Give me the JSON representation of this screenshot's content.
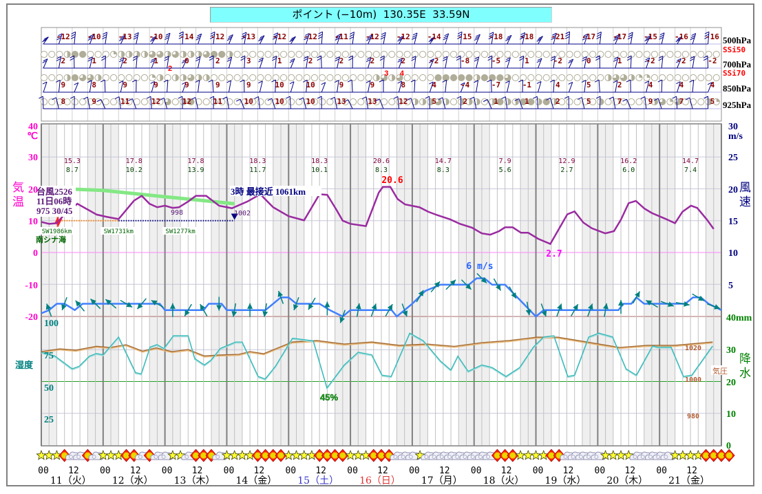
{
  "title": "ポイント (−10m)  130.35E  33.59N",
  "upper_air": {
    "levels": [
      {
        "label": "500hPa",
        "temps": [
          "-12",
          "-10",
          "-13",
          "-10",
          "-14",
          "-12",
          "-13",
          "-12",
          "-12",
          "-11",
          "-12",
          "-12",
          "-14",
          "-15",
          "-18",
          "-18",
          "-21",
          "-17",
          "-17",
          "-15",
          "-16",
          "-16"
        ]
      },
      {
        "label": "700hPa",
        "temps": [
          "2",
          "1",
          "2",
          "1",
          "0",
          "2",
          "3",
          "1",
          "2",
          "2",
          "2",
          "2",
          "-2",
          "-8",
          "-5",
          "1",
          "-2",
          "0",
          "1",
          "-2",
          "-2",
          "-2"
        ]
      },
      {
        "label": "850hPa",
        "temps": [
          "9",
          "8",
          "9",
          "9",
          "9",
          "9",
          "9",
          "10",
          "10",
          "9",
          "9",
          "8",
          "4",
          "-4",
          "-7",
          "-1",
          "4",
          "5",
          "2",
          "4",
          "4",
          "4"
        ]
      },
      {
        "label": "925hPa",
        "temps": [
          "8",
          "9",
          "11",
          "12",
          "12",
          "11",
          "10",
          "10",
          "10",
          "13",
          "13",
          "12",
          "5",
          "2",
          "1",
          "1",
          "2",
          "5",
          "7",
          "9",
          "7",
          "5"
        ]
      }
    ],
    "ssi_labels": [
      "SSi50",
      "SSi70"
    ],
    "ssi_rows": [
      "0002440001222233232223442000000000000000000000000000000000000000000000000000000000000000",
      "0002433200000012022322000000000000000000000232300004444424443000000000000233211000000000",
      "0000000000000000302400000000000000000000000000002223202220242244242000002000000231300021202200"
    ],
    "ssi_red_labels": [
      {
        "hour": 50,
        "text": "2"
      },
      {
        "hour": 134,
        "text": "3"
      },
      {
        "hour": 140,
        "text": "4"
      }
    ]
  },
  "axes": {
    "temp": {
      "ticks": [
        "40",
        "30",
        "20",
        "10",
        "0",
        "-10",
        "-20"
      ],
      "unit": "℃",
      "label": [
        "気",
        "温"
      ]
    },
    "wind": {
      "ticks": [
        "30",
        "25",
        "20",
        "15",
        "10",
        "5"
      ],
      "unit": "m/s",
      "label": [
        "風",
        "速"
      ]
    },
    "precip": {
      "ticks": [
        "40mm",
        "30",
        "20",
        "10",
        "0"
      ],
      "label": [
        "降",
        "水"
      ]
    },
    "humidity": {
      "ticks": [
        "100",
        "75",
        "50",
        "25"
      ],
      "label": "湿度"
    },
    "pressure": {
      "ticks": [
        "1020",
        "1000",
        "980"
      ],
      "label": "気圧"
    }
  },
  "daily": [
    {
      "max": "15.3",
      "min": "8.7"
    },
    {
      "max": "17.8",
      "min": "10.2"
    },
    {
      "max": "17.8",
      "min": "13.9"
    },
    {
      "max": "18.3",
      "min": "11.7"
    },
    {
      "max": "18.3",
      "min": "10.1"
    },
    {
      "max": "20.6",
      "min": "8.3"
    },
    {
      "max": "14.7",
      "min": "8.3"
    },
    {
      "max": "7.9",
      "min": "5.6"
    },
    {
      "max": "12.9",
      "min": "2.7"
    },
    {
      "max": "16.2",
      "min": "6.0"
    },
    {
      "max": "14.7",
      "min": "7.4"
    }
  ],
  "annotations": {
    "temp_max": "20.6",
    "temp_min": "2.7",
    "wind_max": "6 m/s",
    "humidity_min": "45%"
  },
  "typhoon": {
    "name": "台風2526",
    "time": "11日06時",
    "info": "975 30/45",
    "pressure_a": "998",
    "pressure_b": "1002",
    "closest": "3時 最接近 1061km",
    "distances": [
      "SW1986km",
      "SW1731km",
      "SW1277km"
    ],
    "region": "南シナ海",
    "track_line": [
      [
        6,
        20.1
      ],
      [
        24,
        19.5
      ],
      [
        48,
        17.5
      ],
      [
        75,
        15.3
      ]
    ],
    "dotted_past": [
      7,
      30
    ],
    "dotted_future": [
      30,
      75
    ]
  },
  "time_axis": {
    "hour_labels": [
      "00",
      "12"
    ],
    "days": [
      {
        "label": "11（火）",
        "color": "#000000"
      },
      {
        "label": "12（水）",
        "color": "#000000"
      },
      {
        "label": "13（木）",
        "color": "#000000"
      },
      {
        "label": "14（金）",
        "color": "#000000"
      },
      {
        "label": "15（土）",
        "color": "#3333cc"
      },
      {
        "label": "16（日）",
        "color": "#e03333"
      },
      {
        "label": "17（月）",
        "color": "#000000"
      },
      {
        "label": "18（火）",
        "color": "#000000"
      },
      {
        "label": "19（水）",
        "color": "#000000"
      },
      {
        "label": "20（木）",
        "color": "#000000"
      },
      {
        "label": "21（金）",
        "color": "#000000"
      }
    ]
  },
  "weather_icons": "sssuccucsssuucuccsscuuucssssuuuussssuuuusssuuucccscccccccccuuussssuucccccsssscccccssssuuuu",
  "colors": {
    "temp": "#9a2aa0",
    "wind": "#4080ff",
    "arrow": "#008080",
    "humidity": "#30b8b8",
    "pressure": "#a0642a",
    "track": "#84e884",
    "temp_axis": "#ff00cc",
    "wind_axis": "#000080",
    "precip_axis": "#008000"
  },
  "chart_data": {
    "type": "line",
    "title": "ポイント (−10m)  130.35E  33.59N",
    "x_unit": "hours since 11日00時",
    "xlim": [
      0,
      264
    ],
    "series": [
      {
        "name": "気温",
        "unit": "℃",
        "ylim": [
          -20,
          40
        ],
        "points": [
          [
            0,
            9.6
          ],
          [
            3,
            9
          ],
          [
            6,
            9.2
          ],
          [
            9,
            12
          ],
          [
            14,
            15.3
          ],
          [
            21.5,
            11.9
          ],
          [
            25.3,
            11.2
          ],
          [
            30,
            10.5
          ],
          [
            36,
            16.3
          ],
          [
            39,
            17.8
          ],
          [
            42,
            15.3
          ],
          [
            45,
            14.2
          ],
          [
            48,
            14.7
          ],
          [
            51,
            14
          ],
          [
            53.4,
            14.2
          ],
          [
            57,
            16
          ],
          [
            60,
            17.8
          ],
          [
            64,
            17.8
          ],
          [
            69,
            14.7
          ],
          [
            74,
            13.9
          ],
          [
            80,
            16
          ],
          [
            85,
            18.3
          ],
          [
            90,
            14.2
          ],
          [
            96,
            11.4
          ],
          [
            102,
            10.1
          ],
          [
            108,
            18.3
          ],
          [
            111,
            18.1
          ],
          [
            114.5,
            13.5
          ],
          [
            117,
            10
          ],
          [
            120,
            9
          ],
          [
            126,
            8.3
          ],
          [
            131,
            18.8
          ],
          [
            132.6,
            20.6
          ],
          [
            135.5,
            20.6
          ],
          [
            138.3,
            16.8
          ],
          [
            141.2,
            15.1
          ],
          [
            146.8,
            14.2
          ],
          [
            150.2,
            12.8
          ],
          [
            153.5,
            11.8
          ],
          [
            158.7,
            10.4
          ],
          [
            162.5,
            9
          ],
          [
            167.2,
            7.8
          ],
          [
            171,
            6
          ],
          [
            174.3,
            5.6
          ],
          [
            177.7,
            6.7
          ],
          [
            180,
            7.9
          ],
          [
            183,
            7.9
          ],
          [
            186.2,
            6.2
          ],
          [
            189,
            6.2
          ],
          [
            192.9,
            4.3
          ],
          [
            197.6,
            2.7
          ],
          [
            204.2,
            12
          ],
          [
            207,
            12.9
          ],
          [
            210.4,
            9.4
          ],
          [
            213.7,
            7.6
          ],
          [
            218.9,
            6
          ],
          [
            222.3,
            6.7
          ],
          [
            225,
            10.3
          ],
          [
            228,
            15.5
          ],
          [
            230.8,
            16.2
          ],
          [
            234.1,
            13.8
          ],
          [
            237,
            12.4
          ],
          [
            242.2,
            10.6
          ],
          [
            246,
            9.2
          ],
          [
            248.9,
            12.8
          ],
          [
            252.2,
            14.7
          ],
          [
            254.6,
            14
          ],
          [
            258.4,
            10.3
          ],
          [
            261,
            7.4
          ]
        ]
      },
      {
        "name": "風速",
        "unit": "m/s",
        "ylim": [
          0,
          30
        ],
        "points": [
          [
            0,
            0.5
          ],
          [
            3,
            1
          ],
          [
            6,
            2
          ],
          [
            9,
            2
          ],
          [
            11,
            1.5
          ],
          [
            13,
            1
          ],
          [
            16,
            2
          ],
          [
            46,
            2
          ],
          [
            48,
            1
          ],
          [
            63,
            1
          ],
          [
            65,
            2
          ],
          [
            70,
            2
          ],
          [
            72,
            1
          ],
          [
            87,
            1
          ],
          [
            90,
            2
          ],
          [
            93,
            3
          ],
          [
            96,
            3
          ],
          [
            99,
            2
          ],
          [
            108,
            2
          ],
          [
            112,
            1
          ],
          [
            117,
            0
          ],
          [
            120,
            1
          ],
          [
            136,
            1
          ],
          [
            138,
            0
          ],
          [
            141,
            1
          ],
          [
            144,
            2
          ],
          [
            149,
            4
          ],
          [
            155,
            5
          ],
          [
            166,
            5
          ],
          [
            169,
            6
          ],
          [
            172,
            6
          ],
          [
            175,
            5
          ],
          [
            180,
            5
          ],
          [
            192,
            0
          ],
          [
            195,
            1
          ],
          [
            224,
            1
          ],
          [
            226,
            2
          ],
          [
            229,
            2
          ],
          [
            231,
            3
          ],
          [
            234,
            2
          ],
          [
            250,
            2
          ],
          [
            253,
            3
          ],
          [
            256,
            3
          ],
          [
            259,
            2
          ],
          [
            264,
            1
          ]
        ]
      },
      {
        "name": "風向",
        "unit": "deg",
        "every_hours": 6,
        "values": [
          -20,
          200,
          -40,
          -45,
          -50,
          120,
          220,
          -60,
          0,
          210,
          -30,
          180,
          190,
          0,
          190,
          -20,
          200,
          210,
          0,
          200,
          10,
          20,
          30,
          160,
          30,
          40,
          45,
          135,
          135,
          150,
          150,
          170,
          160,
          20,
          30,
          20,
          10,
          0,
          30,
          -60,
          110,
          100,
          120,
          110
        ]
      },
      {
        "name": "湿度",
        "unit": "%",
        "ylim": [
          0,
          100
        ],
        "points": [
          [
            0,
            73
          ],
          [
            5.3,
            70
          ],
          [
            12,
            60
          ],
          [
            14.7,
            62
          ],
          [
            18.7,
            70
          ],
          [
            21.4,
            72
          ],
          [
            24,
            71
          ],
          [
            30,
            85
          ],
          [
            36.6,
            57
          ],
          [
            38.8,
            56
          ],
          [
            42.2,
            77
          ],
          [
            44.9,
            79
          ],
          [
            47.6,
            76
          ],
          [
            51.3,
            86
          ],
          [
            57,
            86
          ],
          [
            59.6,
            68
          ],
          [
            63.3,
            63
          ],
          [
            66,
            67
          ],
          [
            69.5,
            76
          ],
          [
            75.4,
            81
          ],
          [
            78,
            81
          ],
          [
            84.2,
            54
          ],
          [
            86.9,
            52
          ],
          [
            90.9,
            62
          ],
          [
            97.5,
            84
          ],
          [
            105.6,
            82
          ],
          [
            110.9,
            45
          ],
          [
            117.6,
            63
          ],
          [
            123,
            73
          ],
          [
            128.3,
            71
          ],
          [
            132.3,
            55
          ],
          [
            135.8,
            54
          ],
          [
            143,
            88
          ],
          [
            148.3,
            82
          ],
          [
            155,
            66
          ],
          [
            159,
            59
          ],
          [
            161.7,
            70
          ],
          [
            165.7,
            58
          ],
          [
            171,
            63
          ],
          [
            175,
            61
          ],
          [
            180.4,
            54
          ],
          [
            185.7,
            61
          ],
          [
            191,
            77
          ],
          [
            195,
            85
          ],
          [
            199,
            86
          ],
          [
            204.4,
            54
          ],
          [
            207,
            55
          ],
          [
            212.5,
            85
          ],
          [
            216.5,
            88
          ],
          [
            221.8,
            85
          ],
          [
            227,
            60
          ],
          [
            231,
            55
          ],
          [
            237.3,
            78
          ],
          [
            239.2,
            77
          ],
          [
            244.5,
            77
          ],
          [
            249.3,
            54
          ],
          [
            252.5,
            55
          ],
          [
            260.6,
            78
          ]
        ]
      },
      {
        "name": "気圧",
        "unit": "hPa",
        "points": [
          [
            0,
            1018.7
          ],
          [
            7.2,
            1020.4
          ],
          [
            13.4,
            1019.6
          ],
          [
            21.4,
            1022
          ],
          [
            26.7,
            1021.3
          ],
          [
            32.9,
            1023
          ],
          [
            39.3,
            1019
          ],
          [
            44.6,
            1021
          ],
          [
            50.8,
            1018.7
          ],
          [
            57,
            1020
          ],
          [
            63.3,
            1016
          ],
          [
            69.5,
            1016.6
          ],
          [
            76.7,
            1017
          ],
          [
            81,
            1018.7
          ],
          [
            86.3,
            1017.4
          ],
          [
            90.9,
            1020.4
          ],
          [
            97.5,
            1024.7
          ],
          [
            106.9,
            1025.6
          ],
          [
            117.6,
            1023.4
          ],
          [
            128.3,
            1024.7
          ],
          [
            139,
            1022.6
          ],
          [
            149.7,
            1023.4
          ],
          [
            160.3,
            1022
          ],
          [
            171,
            1024.3
          ],
          [
            181.7,
            1025.6
          ],
          [
            192.4,
            1027.7
          ],
          [
            200.4,
            1027.7
          ],
          [
            208.4,
            1025.6
          ],
          [
            216.5,
            1023.4
          ],
          [
            224.5,
            1021.3
          ],
          [
            235.2,
            1022.6
          ],
          [
            245.9,
            1022.6
          ],
          [
            260.6,
            1024.7
          ]
        ]
      },
      {
        "name": "降水",
        "unit": "mm",
        "ylim": [
          0,
          40
        ],
        "points": []
      }
    ]
  }
}
